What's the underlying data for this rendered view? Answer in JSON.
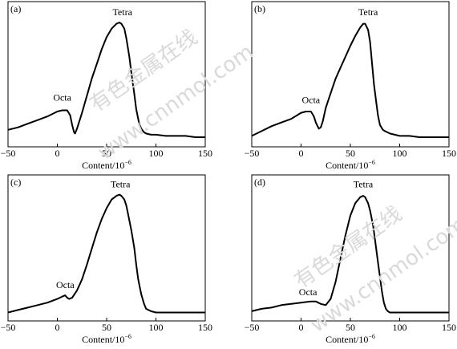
{
  "watermark": {
    "line1": "有色金属在线",
    "line2": "www.cnnmol.com"
  },
  "chart_data": [
    {
      "type": "line",
      "panel_label": "(a)",
      "xlabel": "Content/10",
      "xlabel_sup": "−6",
      "xlim": [
        -50,
        150
      ],
      "xticks": [
        -50,
        0,
        50,
        100,
        150
      ],
      "ylim": [
        0,
        1
      ],
      "x": [
        -50,
        -40,
        -30,
        -20,
        -10,
        0,
        5,
        10,
        13,
        15,
        17,
        18,
        20,
        25,
        30,
        35,
        40,
        45,
        50,
        55,
        60,
        63,
        65,
        68,
        70,
        73,
        75,
        78,
        80,
        83,
        85,
        88,
        90,
        95,
        100,
        110,
        120,
        130,
        140,
        150
      ],
      "y": [
        0.08,
        0.1,
        0.13,
        0.16,
        0.19,
        0.23,
        0.24,
        0.24,
        0.2,
        0.12,
        0.06,
        0.05,
        0.09,
        0.22,
        0.36,
        0.5,
        0.62,
        0.74,
        0.84,
        0.91,
        0.95,
        0.96,
        0.95,
        0.91,
        0.83,
        0.68,
        0.55,
        0.38,
        0.25,
        0.13,
        0.09,
        0.06,
        0.05,
        0.04,
        0.04,
        0.03,
        0.03,
        0.03,
        0.02,
        0.02
      ],
      "annotations": [
        {
          "text": "Octa",
          "x": 5,
          "y": 0.32
        },
        {
          "text": "Tetra",
          "x": 66,
          "y": 1.02
        }
      ]
    },
    {
      "type": "line",
      "panel_label": "(b)",
      "xlabel": "Content/10",
      "xlabel_sup": "−6",
      "xlim": [
        -50,
        150
      ],
      "xticks": [
        -50,
        0,
        50,
        100,
        150
      ],
      "ylim": [
        0,
        1
      ],
      "x": [
        -50,
        -40,
        -30,
        -20,
        -10,
        0,
        5,
        10,
        13,
        15,
        18,
        20,
        22,
        25,
        30,
        35,
        40,
        45,
        50,
        55,
        60,
        63,
        65,
        68,
        70,
        72,
        74,
        76,
        78,
        80,
        83,
        85,
        90,
        95,
        100,
        110,
        120,
        130,
        140,
        150
      ],
      "y": [
        0.03,
        0.07,
        0.11,
        0.14,
        0.17,
        0.22,
        0.23,
        0.23,
        0.19,
        0.14,
        0.09,
        0.1,
        0.15,
        0.26,
        0.38,
        0.5,
        0.59,
        0.68,
        0.77,
        0.85,
        0.92,
        0.95,
        0.95,
        0.9,
        0.8,
        0.62,
        0.45,
        0.32,
        0.2,
        0.12,
        0.08,
        0.07,
        0.05,
        0.04,
        0.03,
        0.03,
        0.02,
        0.02,
        0.02,
        0.02
      ],
      "annotations": [
        {
          "text": "Octa",
          "x": 10,
          "y": 0.3
        },
        {
          "text": "Tetra",
          "x": 68,
          "y": 1.02
        }
      ]
    },
    {
      "type": "line",
      "panel_label": "(c)",
      "xlabel": "Content/10",
      "xlabel_sup": "−6",
      "xlim": [
        -50,
        150
      ],
      "xticks": [
        -50,
        0,
        50,
        100,
        150
      ],
      "ylim": [
        0,
        1
      ],
      "x": [
        -50,
        -40,
        -30,
        -20,
        -10,
        0,
        5,
        8,
        10,
        12,
        15,
        20,
        25,
        30,
        35,
        40,
        45,
        50,
        55,
        60,
        63,
        65,
        68,
        70,
        72,
        75,
        78,
        80,
        82,
        85,
        88,
        90,
        95,
        100,
        110,
        120,
        130,
        140,
        150
      ],
      "y": [
        0.01,
        0.03,
        0.05,
        0.07,
        0.09,
        0.12,
        0.14,
        0.15,
        0.13,
        0.12,
        0.13,
        0.19,
        0.28,
        0.4,
        0.53,
        0.66,
        0.77,
        0.86,
        0.93,
        0.96,
        0.97,
        0.96,
        0.93,
        0.88,
        0.8,
        0.68,
        0.54,
        0.4,
        0.28,
        0.16,
        0.08,
        0.04,
        0.02,
        0.01,
        0.01,
        0.01,
        0.01,
        0.01,
        0.01
      ],
      "annotations": [
        {
          "text": "Octa",
          "x": 8,
          "y": 0.21
        },
        {
          "text": "Tetra",
          "x": 64,
          "y": 1.03
        }
      ]
    },
    {
      "type": "line",
      "panel_label": "(d)",
      "xlabel": "Content/10",
      "xlabel_sup": "−6",
      "xlim": [
        -50,
        150
      ],
      "xticks": [
        -50,
        0,
        50,
        100,
        150
      ],
      "ylim": [
        0,
        1
      ],
      "x": [
        -50,
        -40,
        -30,
        -20,
        -10,
        0,
        10,
        15,
        20,
        25,
        30,
        35,
        40,
        45,
        50,
        55,
        60,
        63,
        65,
        68,
        70,
        73,
        75,
        78,
        80,
        82,
        84,
        86,
        88,
        90,
        95,
        100,
        110,
        120,
        130,
        140,
        150
      ],
      "y": [
        0.02,
        0.04,
        0.05,
        0.07,
        0.08,
        0.09,
        0.1,
        0.1,
        0.08,
        0.07,
        0.12,
        0.26,
        0.45,
        0.64,
        0.8,
        0.9,
        0.95,
        0.96,
        0.95,
        0.9,
        0.84,
        0.72,
        0.6,
        0.42,
        0.3,
        0.18,
        0.09,
        0.04,
        0.02,
        0.01,
        0.01,
        0.01,
        0.01,
        0.01,
        0.01,
        0.01,
        0.01
      ],
      "annotations": [
        {
          "text": "Octa",
          "x": 7,
          "y": 0.15
        },
        {
          "text": "Tetra",
          "x": 63,
          "y": 1.03
        }
      ]
    }
  ]
}
